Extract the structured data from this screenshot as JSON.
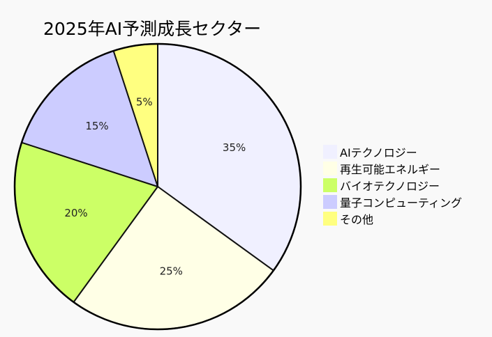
{
  "chart_data": {
    "type": "pie",
    "title": "2025年AI予測成長セクター",
    "slices": [
      {
        "label": "AIテクノロジー",
        "value": 35,
        "display": "35%",
        "color": "#f0f0ff"
      },
      {
        "label": "再生可能エネルギー",
        "value": 25,
        "display": "25%",
        "color": "#ffffe6"
      },
      {
        "label": "バイオテクノロジー",
        "value": 20,
        "display": "20%",
        "color": "#ccff66"
      },
      {
        "label": "量子コンピューティング",
        "value": 15,
        "display": "15%",
        "color": "#ccccff"
      },
      {
        "label": "その他",
        "value": 5,
        "display": "5%",
        "color": "#ffff80"
      }
    ],
    "legend_position": "right"
  }
}
